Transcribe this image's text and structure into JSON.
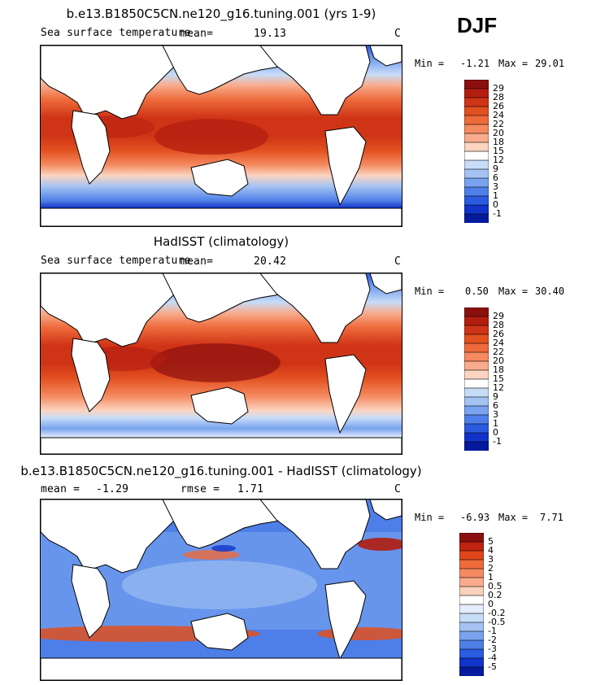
{
  "season": "DJF",
  "chart_data": [
    {
      "type": "heatmap",
      "title": "b.e13.B1850C5CN.ne120_g16.tuning.001 (yrs 1-9)",
      "variable_label": "Sea surface temperature",
      "mean_label": "mean=",
      "mean": "19.13",
      "units": "C",
      "min_label": "Min =",
      "min": "-1.21",
      "max_label": "Max =",
      "max": "29.01",
      "colorbar_levels": [
        "29",
        "28",
        "26",
        "24",
        "22",
        "20",
        "18",
        "15",
        "12",
        "9",
        "6",
        "3",
        "1",
        "0",
        "-1"
      ],
      "colorbar_colors": [
        "#8b0f0f",
        "#b31d10",
        "#cf3416",
        "#e2501f",
        "#ee6a3b",
        "#f58a60",
        "#f8ac8d",
        "#fbd5c2",
        "#ffffff",
        "#c7dcf7",
        "#a4c3f3",
        "#79a3ef",
        "#4e7fe8",
        "#2a5be0",
        "#1133c9",
        "#061a9d"
      ]
    },
    {
      "type": "heatmap",
      "title": "HadISST (climatology)",
      "variable_label": "Sea surface temperature",
      "mean_label": "mean=",
      "mean": "20.42",
      "units": "C",
      "min_label": "Min =",
      "min": "0.50",
      "max_label": "Max =",
      "max": "30.40",
      "colorbar_levels": [
        "29",
        "28",
        "26",
        "24",
        "22",
        "20",
        "18",
        "15",
        "12",
        "9",
        "6",
        "3",
        "1",
        "0",
        "-1"
      ],
      "colorbar_colors": [
        "#8b0f0f",
        "#b31d10",
        "#cf3416",
        "#e2501f",
        "#ee6a3b",
        "#f58a60",
        "#f8ac8d",
        "#fbd5c2",
        "#ffffff",
        "#c7dcf7",
        "#a4c3f3",
        "#79a3ef",
        "#4e7fe8",
        "#2a5be0",
        "#1133c9",
        "#061a9d"
      ]
    },
    {
      "type": "heatmap",
      "title": "b.e13.B1850C5CN.ne120_g16.tuning.001 - HadISST (climatology)",
      "mean_label": "mean =",
      "mean": "-1.29",
      "rmse_label": "rmse =",
      "rmse": "1.71",
      "units": "C",
      "min_label": "Min =",
      "min": "-6.93",
      "max_label": "Max =",
      "max": "7.71",
      "colorbar_levels": [
        "5",
        "4",
        "3",
        "2",
        "1",
        "0.5",
        "0.2",
        "0",
        "-0.2",
        "-0.5",
        "-1",
        "-2",
        "-3",
        "-4",
        "-5"
      ],
      "colorbar_colors": [
        "#8b0f0f",
        "#c0230f",
        "#e0461a",
        "#ee6a3b",
        "#f58a60",
        "#f8ac8d",
        "#fbd0bd",
        "#ffffff",
        "#e4edfb",
        "#c7dcf7",
        "#a4c3f3",
        "#79a3ef",
        "#4e7fe8",
        "#2a5be0",
        "#1133c9",
        "#061a9d"
      ]
    }
  ]
}
